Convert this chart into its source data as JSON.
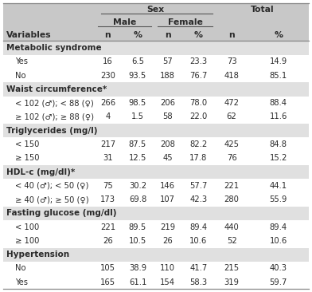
{
  "sections": [
    {
      "label": "Metabolic syndrome",
      "rows": [
        [
          "Yes",
          "16",
          "6.5",
          "57",
          "23.3",
          "73",
          "14.9"
        ],
        [
          "No",
          "230",
          "93.5",
          "188",
          "76.7",
          "418",
          "85.1"
        ]
      ]
    },
    {
      "label": "Waist circumference*",
      "rows": [
        [
          "< 102 (♂); < 88 (♀)",
          "266",
          "98.5",
          "206",
          "78.0",
          "472",
          "88.4"
        ],
        [
          "≥ 102 (♂); ≥ 88 (♀)",
          "4",
          "1.5",
          "58",
          "22.0",
          "62",
          "11.6"
        ]
      ]
    },
    {
      "label": "Triglycerides (mg/l)",
      "rows": [
        [
          "< 150",
          "217",
          "87.5",
          "208",
          "82.2",
          "425",
          "84.8"
        ],
        [
          "≥ 150",
          "31",
          "12.5",
          "45",
          "17.8",
          "76",
          "15.2"
        ]
      ]
    },
    {
      "label": "HDL-c (mg/dl)*",
      "rows": [
        [
          "< 40 (♂); < 50 (♀)",
          "75",
          "30.2",
          "146",
          "57.7",
          "221",
          "44.1"
        ],
        [
          "≥ 40 (♂); ≥ 50 (♀)",
          "173",
          "69.8",
          "107",
          "42.3",
          "280",
          "55.9"
        ]
      ]
    },
    {
      "label": "Fasting glucose (mg/dl)",
      "rows": [
        [
          "< 100",
          "221",
          "89.5",
          "219",
          "89.4",
          "440",
          "89.4"
        ],
        [
          "≥ 100",
          "26",
          "10.5",
          "26",
          "10.6",
          "52",
          "10.6"
        ]
      ]
    },
    {
      "label": "Hypertension",
      "rows": [
        [
          "No",
          "105",
          "38.9",
          "110",
          "41.7",
          "215",
          "40.3"
        ],
        [
          "Yes",
          "165",
          "61.1",
          "154",
          "58.3",
          "319",
          "59.7"
        ]
      ]
    }
  ],
  "header_bg": "#c8c8c8",
  "section_bg": "#e0e0e0",
  "row_bg": "#ffffff",
  "text_color": "#2a2a2a",
  "col_starts": [
    0.0,
    0.3,
    0.385,
    0.495,
    0.582,
    0.695,
    0.8
  ],
  "col_ends": [
    0.3,
    0.385,
    0.495,
    0.582,
    0.695,
    0.8,
    1.0
  ],
  "header_fontsize": 7.8,
  "data_fontsize": 7.2,
  "n_header_rows": 3
}
